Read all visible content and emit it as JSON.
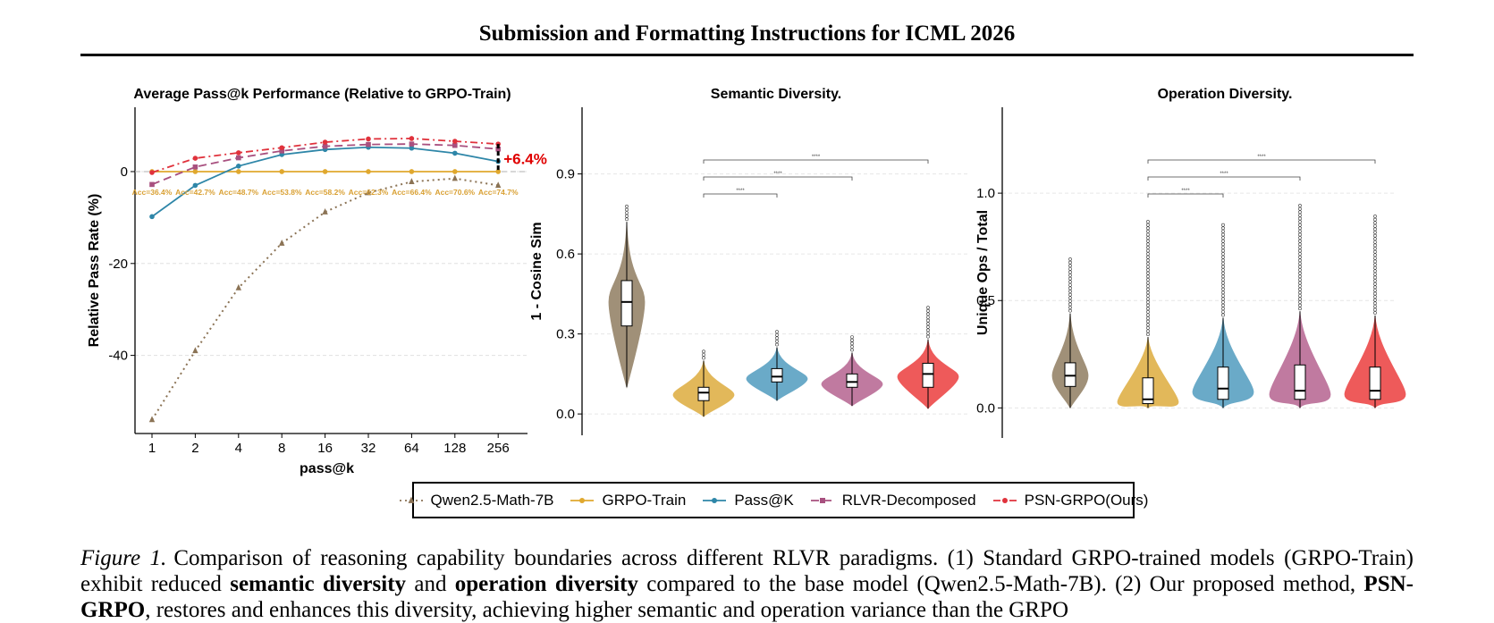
{
  "header": {
    "title": "Submission and Formatting Instructions for ICML 2026"
  },
  "chart_data": [
    {
      "type": "line",
      "title": "Average Pass@k Performance (Relative to GRPO-Train)",
      "xlabel": "pass@k",
      "ylabel": "Relative Pass Rate (%)",
      "categories": [
        "1",
        "2",
        "4",
        "8",
        "16",
        "32",
        "64",
        "128",
        "256"
      ],
      "yticks": [
        0,
        -20,
        -40
      ],
      "ylim": [
        -57,
        14
      ],
      "grid": "horizontal-dashed",
      "legend": "bottom",
      "series": [
        {
          "name": "Qwen2.5-Math-7B",
          "color": "#8b7355",
          "style": "dotted",
          "marker": "triangle",
          "values": [
            -54.0,
            -39.0,
            -25.3,
            -15.6,
            -8.8,
            -4.6,
            -2.2,
            -1.5,
            -3.0
          ]
        },
        {
          "name": "GRPO-Train",
          "color": "#e0a82e",
          "style": "solid",
          "marker": "circle",
          "values": [
            0,
            0,
            0,
            0,
            0,
            0,
            0,
            0,
            0
          ]
        },
        {
          "name": "Pass@K",
          "color": "#2e86a8",
          "style": "solid",
          "marker": "circle",
          "values": [
            -9.8,
            -3.0,
            1.2,
            3.7,
            4.8,
            5.3,
            5.1,
            4.0,
            2.2
          ]
        },
        {
          "name": "RLVR-Decomposed",
          "color": "#a8507f",
          "style": "dashed",
          "marker": "square",
          "values": [
            -2.8,
            1.0,
            3.0,
            4.5,
            5.5,
            5.9,
            6.0,
            5.7,
            4.9
          ]
        },
        {
          "name": "PSN-GRPO(Ours)",
          "color": "#e0323c",
          "style": "dashdot",
          "marker": "circle",
          "values": [
            -0.2,
            2.9,
            4.1,
            5.2,
            6.4,
            7.1,
            7.2,
            6.6,
            6.0
          ]
        }
      ],
      "acc_labels": [
        "Acc=36.4%",
        "Acc=42.7%",
        "Acc=48.7%",
        "Acc=53.8%",
        "Acc=58.2%",
        "Acc=62.3%",
        "Acc=66.4%",
        "Acc=70.6%",
        "Acc=74.7%"
      ],
      "annotation": "+6.4%",
      "annotation_color": "#e00000"
    },
    {
      "type": "violin",
      "title": "Semantic Diversity.",
      "ylabel": "1 - Cosine Sim",
      "yticks": [
        0.0,
        0.3,
        0.6,
        0.9
      ],
      "ylim": [
        -0.08,
        1.15
      ],
      "grid": "horizontal-dashed",
      "significance": "****",
      "groups": [
        {
          "name": "Qwen2.5-Math-7B",
          "color": "#a09078",
          "min": 0.1,
          "q1": 0.33,
          "median": 0.42,
          "q3": 0.5,
          "max": 0.72,
          "outlier_max": 0.78
        },
        {
          "name": "GRPO-Train",
          "color": "#e2b85a",
          "min": -0.01,
          "q1": 0.05,
          "median": 0.08,
          "q3": 0.1,
          "max": 0.2,
          "outlier_max": 0.24
        },
        {
          "name": "Pass@K",
          "color": "#6aaac8",
          "min": 0.05,
          "q1": 0.12,
          "median": 0.14,
          "q3": 0.17,
          "max": 0.25,
          "outlier_max": 0.31
        },
        {
          "name": "RLVR-Decomposed",
          "color": "#c07aa0",
          "min": 0.03,
          "q1": 0.1,
          "median": 0.12,
          "q3": 0.15,
          "max": 0.23,
          "outlier_max": 0.3
        },
        {
          "name": "PSN-GRPO(Ours)",
          "color": "#ee5a5a",
          "min": 0.02,
          "q1": 0.1,
          "median": 0.15,
          "q3": 0.19,
          "max": 0.28,
          "outlier_max": 0.4
        }
      ]
    },
    {
      "type": "violin",
      "title": "Operation Diversity.",
      "ylabel": "Unique Ops / Total",
      "yticks": [
        0.0,
        0.5,
        1.0
      ],
      "ylim": [
        -0.14,
        1.4
      ],
      "grid": "horizontal-dashed",
      "significance": "****",
      "groups": [
        {
          "name": "Qwen2.5-Math-7B",
          "color": "#a09078",
          "min": 0.0,
          "q1": 0.1,
          "median": 0.15,
          "q3": 0.21,
          "max": 0.44,
          "outlier_max": 0.7
        },
        {
          "name": "GRPO-Train",
          "color": "#e2b85a",
          "min": 0.0,
          "q1": 0.02,
          "median": 0.04,
          "q3": 0.14,
          "max": 0.33,
          "outlier_max": 0.87
        },
        {
          "name": "Pass@K",
          "color": "#6aaac8",
          "min": 0.0,
          "q1": 0.04,
          "median": 0.09,
          "q3": 0.19,
          "max": 0.42,
          "outlier_max": 0.86
        },
        {
          "name": "RLVR-Decomposed",
          "color": "#c07aa0",
          "min": 0.0,
          "q1": 0.04,
          "median": 0.08,
          "q3": 0.2,
          "max": 0.45,
          "outlier_max": 0.95
        },
        {
          "name": "PSN-GRPO(Ours)",
          "color": "#ee5a5a",
          "min": 0.0,
          "q1": 0.04,
          "median": 0.08,
          "q3": 0.19,
          "max": 0.43,
          "outlier_max": 0.9
        }
      ]
    }
  ],
  "legend": {
    "items": [
      {
        "label": "Qwen2.5-Math-7B",
        "color": "#8b7355",
        "style": "dotted",
        "marker": "triangle"
      },
      {
        "label": "GRPO-Train",
        "color": "#e0a82e",
        "style": "solid",
        "marker": "circle"
      },
      {
        "label": "Pass@K",
        "color": "#2e86a8",
        "style": "solid",
        "marker": "circle"
      },
      {
        "label": "RLVR-Decomposed",
        "color": "#a8507f",
        "style": "dashed",
        "marker": "square"
      },
      {
        "label": "PSN-GRPO(Ours)",
        "color": "#e0323c",
        "style": "dashdot",
        "marker": "circle"
      }
    ]
  },
  "caption": {
    "label": "Figure 1.",
    "text_1": "Comparison of reasoning capability boundaries across different RLVR paradigms. (1) Standard GRPO-trained models (GRPO-Train) exhibit reduced ",
    "bold_1": "semantic diversity",
    "text_2": " and ",
    "bold_2": "operation diversity",
    "text_3": " compared to the base model (Qwen2.5-Math-7B). (2) Our proposed method, ",
    "bold_3": "PSN-GRPO",
    "text_4": ", restores and enhances this diversity, achieving higher semantic and operation variance than the GRPO"
  }
}
